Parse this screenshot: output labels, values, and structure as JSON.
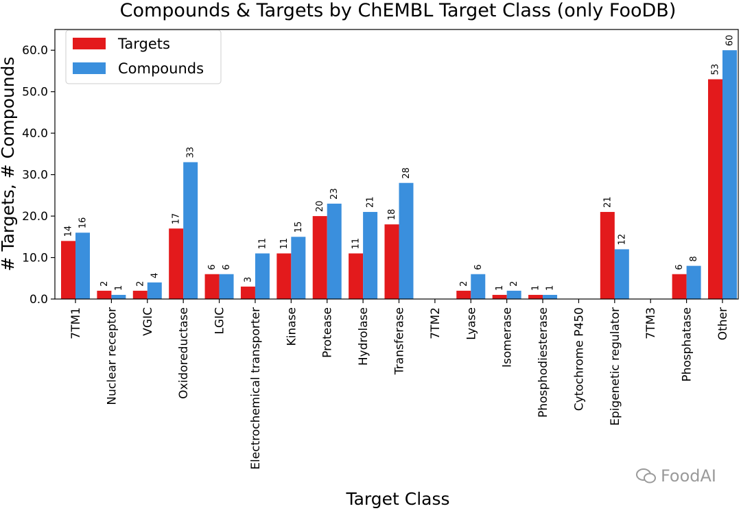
{
  "chart_data": {
    "type": "bar",
    "title": "Compounds & Targets by ChEMBL Target Class (only FooDB)",
    "xlabel": "Target Class",
    "ylabel": "# Targets, # Compounds",
    "ylim": [
      0,
      65
    ],
    "yticks": [
      "0.0",
      "10.0",
      "20.0",
      "30.0",
      "40.0",
      "50.0",
      "60.0"
    ],
    "legend_position": "top-left",
    "categories": [
      "7TM1",
      "Nuclear receptor",
      "VGIC",
      "Oxidoreductase",
      "LGIC",
      "Electrochemical transporter",
      "Kinase",
      "Protease",
      "Hydrolase",
      "Transferase",
      "7TM2",
      "Lyase",
      "Isomerase",
      "Phosphodiesterase",
      "Cytochrome P450",
      "Epigenetic regulator",
      "7TM3",
      "Phosphatase",
      "Other"
    ],
    "series": [
      {
        "name": "Targets",
        "color": "#e31a1c",
        "values": [
          14,
          2,
          2,
          17,
          6,
          3,
          11,
          20,
          11,
          18,
          null,
          2,
          1,
          1,
          null,
          21,
          null,
          6,
          53
        ]
      },
      {
        "name": "Compounds",
        "color": "#3a8fdd",
        "values": [
          16,
          1,
          4,
          33,
          6,
          11,
          15,
          23,
          21,
          28,
          null,
          6,
          2,
          1,
          null,
          12,
          null,
          8,
          60
        ]
      }
    ]
  },
  "watermark": {
    "text": "FoodAI",
    "icon": "wechat-icon"
  }
}
